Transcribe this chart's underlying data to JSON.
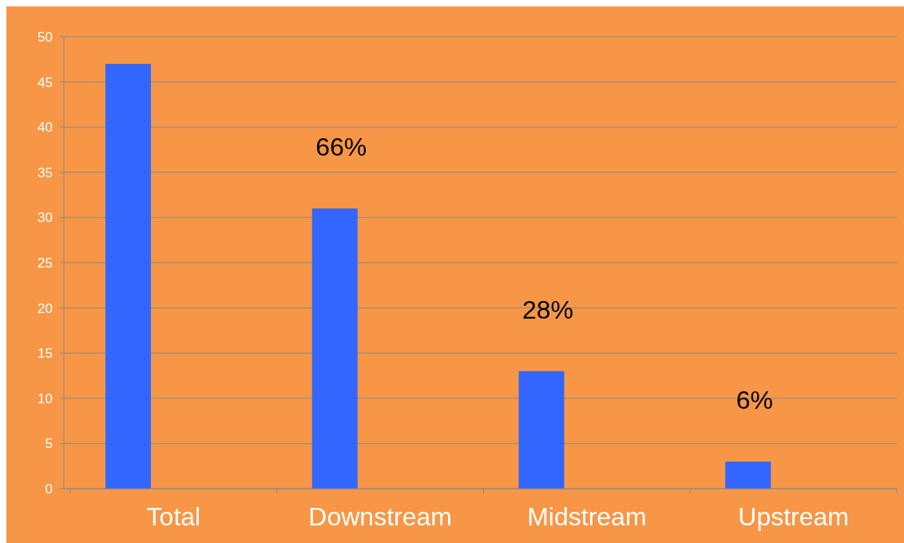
{
  "chart_data": {
    "type": "bar",
    "categories": [
      "Total",
      "Downstream",
      "Midstream",
      "Upstream"
    ],
    "values": [
      47,
      31,
      13,
      3
    ],
    "color": "#3366ff",
    "ylim": [
      0,
      50
    ],
    "yticks": [
      0,
      5,
      10,
      15,
      20,
      25,
      30,
      35,
      40,
      45,
      50
    ],
    "grid": "y",
    "annotations": [
      "66%",
      "28%",
      "6%"
    ]
  }
}
